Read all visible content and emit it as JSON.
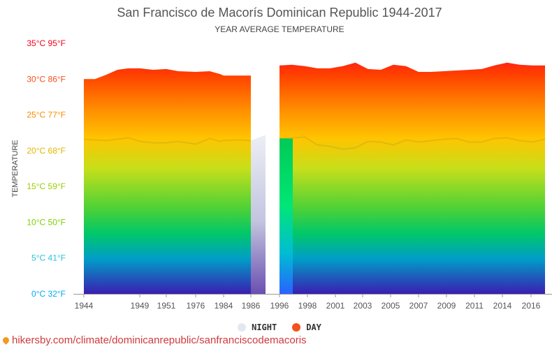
{
  "header": {
    "title": "San Francisco de Macorís Dominican Republic 1944-2017",
    "subtitle": "YEAR AVERAGE TEMPERATURE"
  },
  "legend": {
    "night_label": "NIGHT",
    "day_label": "DAY",
    "night_color": "#e3e7ef",
    "day_color": "#f4511e"
  },
  "source": {
    "text": "hikersby.com/climate/dominicanrepublic/sanfranciscodemacoris",
    "icon": "location-pin-icon"
  },
  "chart_data": {
    "type": "area",
    "title": "San Francisco de Macorís Dominican Republic 1944-2017",
    "subtitle": "YEAR AVERAGE TEMPERATURE",
    "ylabel": "TEMPERATURE",
    "ylim": [
      0,
      35
    ],
    "grid": false,
    "legend": "bottom",
    "y_ticks": [
      {
        "value": 0,
        "label": "0°C 32°F",
        "color": "#03a9f4"
      },
      {
        "value": 5,
        "label": "5°C 41°F",
        "color": "#26c6da"
      },
      {
        "value": 10,
        "label": "10°C 50°F",
        "color": "#7cd100"
      },
      {
        "value": 15,
        "label": "15°C 59°F",
        "color": "#9ccc00"
      },
      {
        "value": 20,
        "label": "20°C 68°F",
        "color": "#e2b600"
      },
      {
        "value": 25,
        "label": "25°C 77°F",
        "color": "#fb8c00"
      },
      {
        "value": 30,
        "label": "30°C 86°F",
        "color": "#f4511e"
      },
      {
        "value": 35,
        "label": "35°C 95°F",
        "color": "#f4001e"
      }
    ],
    "categories": [
      "1944",
      "1949",
      "1951",
      "1976",
      "1984",
      "1986",
      "1996",
      "1998",
      "2001",
      "2003",
      "2005",
      "2007",
      "2009",
      "2011",
      "2014",
      "2016"
    ],
    "segments": [
      {
        "x": [
          1944,
          1945,
          1946,
          1947,
          1948,
          1949,
          1950,
          1951,
          1952,
          1976,
          1980,
          1983,
          1984,
          1985,
          1986
        ],
        "day": [
          30.0,
          30.0,
          30.6,
          31.3,
          31.5,
          31.5,
          31.3,
          31.4,
          31.1,
          31.0,
          31.1,
          30.7,
          30.5,
          30.5,
          30.5
        ],
        "night": [
          21.6,
          21.5,
          21.4,
          21.6,
          21.8,
          21.3,
          21.1,
          21.1,
          21.3,
          20.9,
          21.7,
          21.3,
          21.4,
          21.5,
          21.4
        ]
      },
      {
        "x": [
          1996,
          1997,
          1998,
          1999,
          2000,
          2001,
          2002,
          2003,
          2004,
          2005,
          2006,
          2007,
          2008,
          2009,
          2010,
          2011,
          2012,
          2013,
          2014,
          2015,
          2016,
          2017
        ],
        "day": [
          31.9,
          32.0,
          31.8,
          31.5,
          31.5,
          31.8,
          32.3,
          31.4,
          31.3,
          32.0,
          31.8,
          31.0,
          31.0,
          31.1,
          31.2,
          31.3,
          31.4,
          31.9,
          32.3,
          32.0,
          31.9,
          31.9
        ],
        "night": [
          21.7,
          21.8,
          21.9,
          20.8,
          20.6,
          20.2,
          20.4,
          21.3,
          21.2,
          20.8,
          21.5,
          21.2,
          21.4,
          21.6,
          21.7,
          21.2,
          21.2,
          21.7,
          21.8,
          21.4,
          21.2,
          21.6
        ]
      }
    ],
    "gap_night": {
      "x": [
        1986,
        1987
      ],
      "night": [
        21.4,
        22.2
      ]
    }
  }
}
